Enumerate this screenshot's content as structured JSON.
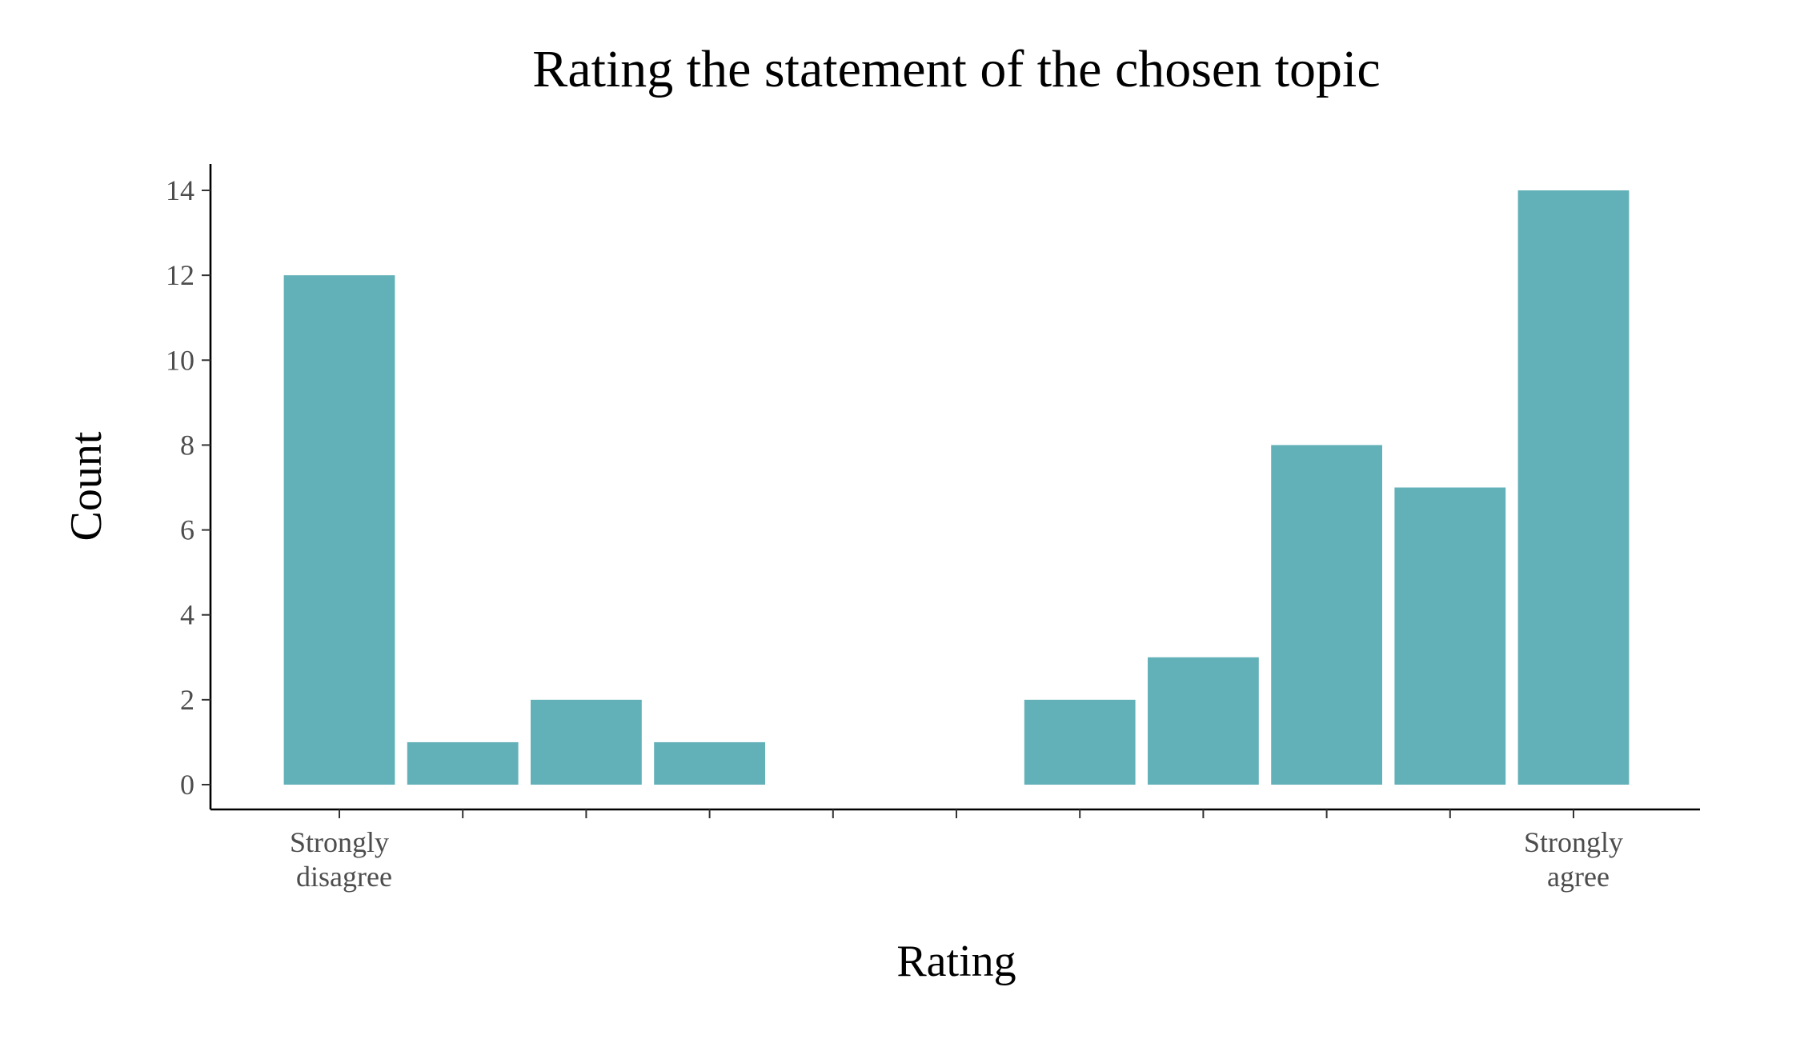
{
  "chart_data": {
    "type": "bar",
    "title": "Rating the statement of the chosen topic",
    "xlabel": "Rating",
    "ylabel": "Count",
    "x": [
      1,
      2,
      3,
      4,
      5,
      6,
      7,
      8,
      9,
      10,
      11,
      12
    ],
    "values": [
      12,
      1,
      2,
      1,
      0,
      0,
      2,
      3,
      8,
      7,
      14,
      0
    ],
    "bars": [
      {
        "x": 1,
        "value": 12
      },
      {
        "x": 2,
        "value": 1
      },
      {
        "x": 3,
        "value": 2
      },
      {
        "x": 4,
        "value": 1
      },
      {
        "x": 7,
        "value": 2
      },
      {
        "x": 8,
        "value": 3
      },
      {
        "x": 9,
        "value": 8
      },
      {
        "x": 10,
        "value": 7
      },
      {
        "x": 11,
        "value": 14
      }
    ],
    "x_ticks": [
      1,
      2,
      3,
      4,
      5,
      6,
      7,
      8,
      9,
      10,
      11
    ],
    "x_tick_labels": [
      {
        "x": 1,
        "lines": [
          "Strongly",
          "disagree"
        ]
      },
      {
        "x": 11,
        "lines": [
          "Strongly",
          "agree"
        ]
      }
    ],
    "y_ticks": [
      0,
      2,
      4,
      6,
      8,
      10,
      12,
      14
    ],
    "xlim": [
      0.1,
      12.2
    ],
    "ylim": [
      0,
      14.6
    ],
    "bar_color": "#62b1b8",
    "grid": false,
    "legend": "none"
  }
}
